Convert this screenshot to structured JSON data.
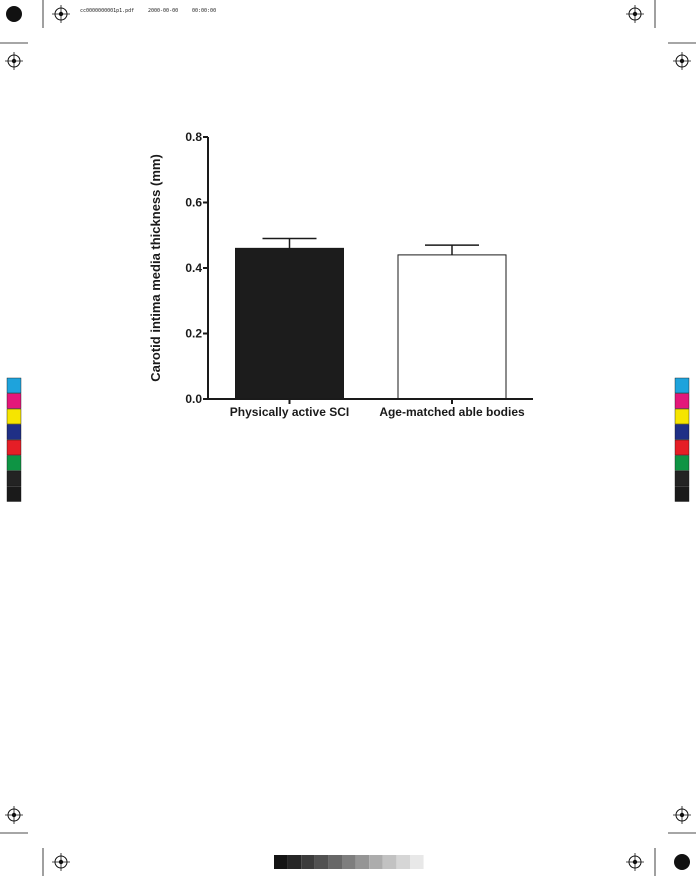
{
  "slug_line": {
    "file": "cc0000000001p1.pdf",
    "date": "2000-00-00",
    "time": "00:00:00"
  },
  "colors": {
    "bar_sci": "#1c1c1c",
    "bar_able": "#ffffff",
    "axis": "#1a1a1a"
  },
  "color_bar": {
    "swatches": [
      "#1ea3dc",
      "#e3177a",
      "#f6e500",
      "#1f2f86",
      "#e51e26",
      "#0e9444",
      "#232323",
      "#1a1a1a"
    ],
    "labels": [
      "c",
      "m",
      "y",
      "b",
      "r",
      "g",
      "k",
      ""
    ]
  },
  "gray_ramp": [
    "#141414",
    "#262626",
    "#3b3b3b",
    "#515151",
    "#676767",
    "#7e7e7e",
    "#959595",
    "#acacac",
    "#c2c2c2",
    "#d6d6d6",
    "#e8e8e8"
  ],
  "chart_data": {
    "type": "bar",
    "categories": [
      "Physically active SCI",
      "Age-matched able bodies"
    ],
    "values": [
      0.46,
      0.44
    ],
    "error_bars": [
      0.03,
      0.03
    ],
    "ylabel": "Carotid intima media thickness (mm)",
    "xlabel": "",
    "title": "",
    "ylim": [
      0.0,
      0.8
    ],
    "yticks": [
      0.0,
      0.2,
      0.4,
      0.6,
      0.8
    ],
    "ytick_labels": [
      "0.0",
      "0.2",
      "0.4",
      "0.6",
      "0.8"
    ],
    "grid": false,
    "legend": "none"
  }
}
